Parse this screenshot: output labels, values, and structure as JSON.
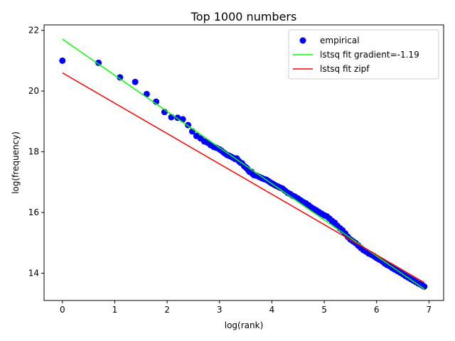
{
  "chart_data": {
    "type": "scatter",
    "title": "Top 1000 numbers",
    "xlabel": "log(rank)",
    "ylabel": "log(frequency)",
    "xlim": [
      -0.35,
      7.28
    ],
    "ylim": [
      13.1,
      22.18
    ],
    "xticks": [
      0,
      1,
      2,
      3,
      4,
      5,
      6,
      7
    ],
    "yticks": [
      14,
      16,
      18,
      20,
      22
    ],
    "grid": false,
    "legend_position": "top-right",
    "series": [
      {
        "name": "empirical",
        "kind": "scatter",
        "color": "#0000ff",
        "points": [
          [
            0.0,
            21.0
          ],
          [
            0.69,
            20.93
          ],
          [
            1.1,
            20.45
          ],
          [
            1.39,
            20.3
          ],
          [
            1.61,
            19.9
          ],
          [
            1.79,
            19.65
          ],
          [
            1.95,
            19.31
          ],
          [
            2.08,
            19.14
          ],
          [
            2.2,
            19.12
          ],
          [
            2.3,
            19.07
          ],
          [
            2.4,
            18.88
          ],
          [
            2.48,
            18.67
          ],
          [
            2.56,
            18.52
          ],
          [
            2.64,
            18.44
          ],
          [
            2.71,
            18.34
          ],
          [
            2.77,
            18.3
          ],
          [
            2.83,
            18.22
          ],
          [
            2.89,
            18.16
          ],
          [
            2.94,
            18.13
          ],
          [
            3.0,
            18.08
          ],
          [
            3.04,
            18.03
          ],
          [
            3.09,
            17.96
          ],
          [
            3.14,
            17.9
          ],
          [
            3.18,
            17.87
          ],
          [
            3.22,
            17.84
          ],
          [
            3.26,
            17.8
          ],
          [
            3.3,
            17.76
          ],
          [
            3.33,
            17.78
          ],
          [
            3.37,
            17.69
          ],
          [
            3.4,
            17.64
          ],
          [
            3.43,
            17.62
          ],
          [
            3.47,
            17.53
          ],
          [
            3.5,
            17.49
          ],
          [
            3.53,
            17.44
          ],
          [
            3.56,
            17.37
          ],
          [
            3.58,
            17.33
          ],
          [
            3.61,
            17.34
          ],
          [
            3.64,
            17.26
          ],
          [
            3.66,
            17.23
          ],
          [
            3.69,
            17.22
          ],
          [
            3.71,
            17.21
          ],
          [
            3.76,
            17.17
          ],
          [
            3.81,
            17.13
          ],
          [
            3.85,
            17.1
          ],
          [
            3.89,
            17.08
          ],
          [
            3.93,
            17.04
          ],
          [
            3.97,
            16.99
          ],
          [
            4.01,
            16.95
          ],
          [
            4.04,
            16.92
          ],
          [
            4.08,
            16.88
          ],
          [
            4.11,
            16.86
          ],
          [
            4.14,
            16.83
          ],
          [
            4.17,
            16.81
          ],
          [
            4.2,
            16.79
          ],
          [
            4.25,
            16.72
          ],
          [
            4.3,
            16.65
          ],
          [
            4.35,
            16.61
          ],
          [
            4.4,
            16.55
          ],
          [
            4.44,
            16.52
          ],
          [
            4.5,
            16.46
          ],
          [
            4.55,
            16.4
          ],
          [
            4.6,
            16.34
          ],
          [
            4.65,
            16.3
          ],
          [
            4.7,
            16.24
          ],
          [
            4.75,
            16.17
          ],
          [
            4.8,
            16.12
          ],
          [
            4.85,
            16.07
          ],
          [
            4.9,
            16.01
          ],
          [
            4.95,
            15.96
          ],
          [
            5.0,
            15.91
          ],
          [
            5.05,
            15.87
          ],
          [
            5.1,
            15.8
          ],
          [
            5.15,
            15.72
          ],
          [
            5.2,
            15.66
          ],
          [
            5.25,
            15.56
          ],
          [
            5.3,
            15.48
          ],
          [
            5.35,
            15.41
          ],
          [
            5.4,
            15.31
          ],
          [
            5.45,
            15.2
          ],
          [
            5.5,
            15.11
          ],
          [
            5.55,
            15.05
          ],
          [
            5.6,
            14.99
          ],
          [
            5.65,
            14.91
          ],
          [
            5.7,
            14.83
          ],
          [
            5.75,
            14.76
          ],
          [
            5.8,
            14.71
          ],
          [
            5.85,
            14.65
          ],
          [
            5.9,
            14.61
          ],
          [
            5.95,
            14.56
          ],
          [
            6.0,
            14.5
          ],
          [
            6.05,
            14.45
          ],
          [
            6.1,
            14.4
          ],
          [
            6.15,
            14.33
          ],
          [
            6.2,
            14.27
          ],
          [
            6.25,
            14.23
          ],
          [
            6.3,
            14.17
          ],
          [
            6.35,
            14.12
          ],
          [
            6.4,
            14.07
          ],
          [
            6.45,
            14.02
          ],
          [
            6.5,
            13.97
          ],
          [
            6.55,
            13.91
          ],
          [
            6.6,
            13.86
          ],
          [
            6.65,
            13.81
          ],
          [
            6.7,
            13.76
          ],
          [
            6.75,
            13.71
          ],
          [
            6.8,
            13.66
          ],
          [
            6.85,
            13.62
          ],
          [
            6.88,
            13.59
          ],
          [
            6.91,
            13.56
          ]
        ]
      },
      {
        "name": "lstsq fit gradient=-1.19",
        "kind": "line",
        "color": "#00ff00",
        "x": [
          0.0,
          6.91
        ],
        "y": [
          21.71,
          13.48
        ]
      },
      {
        "name": "lstsq fit zipf",
        "kind": "line",
        "color": "#ff0000",
        "x": [
          0.0,
          6.91
        ],
        "y": [
          20.6,
          13.69
        ]
      }
    ]
  }
}
